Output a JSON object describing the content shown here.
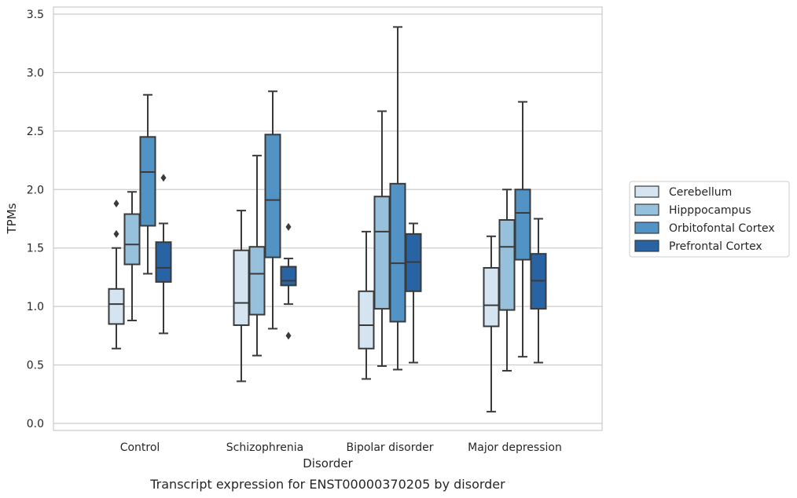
{
  "chart_data": {
    "type": "box",
    "xlabel": "Disorder",
    "ylabel": "TPMs",
    "caption": "Transcript expression for ENST00000370205 by disorder",
    "ylim": [
      -0.05,
      3.56
    ],
    "yticks": [
      "0.0",
      "0.5",
      "1.0",
      "1.5",
      "2.0",
      "2.5",
      "3.0",
      "3.5"
    ],
    "grid": true,
    "legend_position": "right",
    "categories": [
      "Control",
      "Schizophrenia",
      "Bipolar disorder",
      "Major depression"
    ],
    "series": [
      {
        "name": "Cerebellum",
        "color": "#d4e4f1",
        "boxes": [
          {
            "whislo": 0.64,
            "q1": 0.85,
            "med": 1.02,
            "q3": 1.15,
            "whishi": 1.5,
            "fliers": [
              1.62,
              1.88
            ]
          },
          {
            "whislo": 0.36,
            "q1": 0.84,
            "med": 1.03,
            "q3": 1.48,
            "whishi": 1.82,
            "fliers": []
          },
          {
            "whislo": 0.38,
            "q1": 0.64,
            "med": 0.84,
            "q3": 1.13,
            "whishi": 1.64,
            "fliers": []
          },
          {
            "whislo": 0.1,
            "q1": 0.83,
            "med": 1.01,
            "q3": 1.33,
            "whishi": 1.6,
            "fliers": []
          }
        ]
      },
      {
        "name": "Hipppocampus",
        "color": "#97c0dc",
        "boxes": [
          {
            "whislo": 0.88,
            "q1": 1.36,
            "med": 1.53,
            "q3": 1.79,
            "whishi": 1.98,
            "fliers": []
          },
          {
            "whislo": 0.58,
            "q1": 0.93,
            "med": 1.28,
            "q3": 1.51,
            "whishi": 2.29,
            "fliers": []
          },
          {
            "whislo": 0.49,
            "q1": 0.98,
            "med": 1.64,
            "q3": 1.94,
            "whishi": 2.67,
            "fliers": []
          },
          {
            "whislo": 0.45,
            "q1": 0.97,
            "med": 1.51,
            "q3": 1.74,
            "whishi": 2.0,
            "fliers": []
          }
        ]
      },
      {
        "name": "Orbitofontal Cortex",
        "color": "#5193c5",
        "boxes": [
          {
            "whislo": 1.28,
            "q1": 1.69,
            "med": 2.15,
            "q3": 2.45,
            "whishi": 2.81,
            "fliers": []
          },
          {
            "whislo": 0.81,
            "q1": 1.42,
            "med": 1.91,
            "q3": 2.47,
            "whishi": 2.84,
            "fliers": []
          },
          {
            "whislo": 0.46,
            "q1": 0.87,
            "med": 1.37,
            "q3": 2.05,
            "whishi": 3.39,
            "fliers": []
          },
          {
            "whislo": 0.57,
            "q1": 1.4,
            "med": 1.8,
            "q3": 2.0,
            "whishi": 2.75,
            "fliers": []
          }
        ]
      },
      {
        "name": "Prefrontal Cortex",
        "color": "#2864a4",
        "boxes": [
          {
            "whislo": 0.77,
            "q1": 1.21,
            "med": 1.33,
            "q3": 1.55,
            "whishi": 1.71,
            "fliers": [
              2.1
            ]
          },
          {
            "whislo": 1.02,
            "q1": 1.18,
            "med": 1.22,
            "q3": 1.34,
            "whishi": 1.41,
            "fliers": [
              1.68,
              0.75
            ]
          },
          {
            "whislo": 0.52,
            "q1": 1.13,
            "med": 1.38,
            "q3": 1.62,
            "whishi": 1.71,
            "fliers": []
          },
          {
            "whislo": 0.52,
            "q1": 0.98,
            "med": 1.22,
            "q3": 1.45,
            "whishi": 1.75,
            "fliers": []
          }
        ]
      }
    ]
  }
}
